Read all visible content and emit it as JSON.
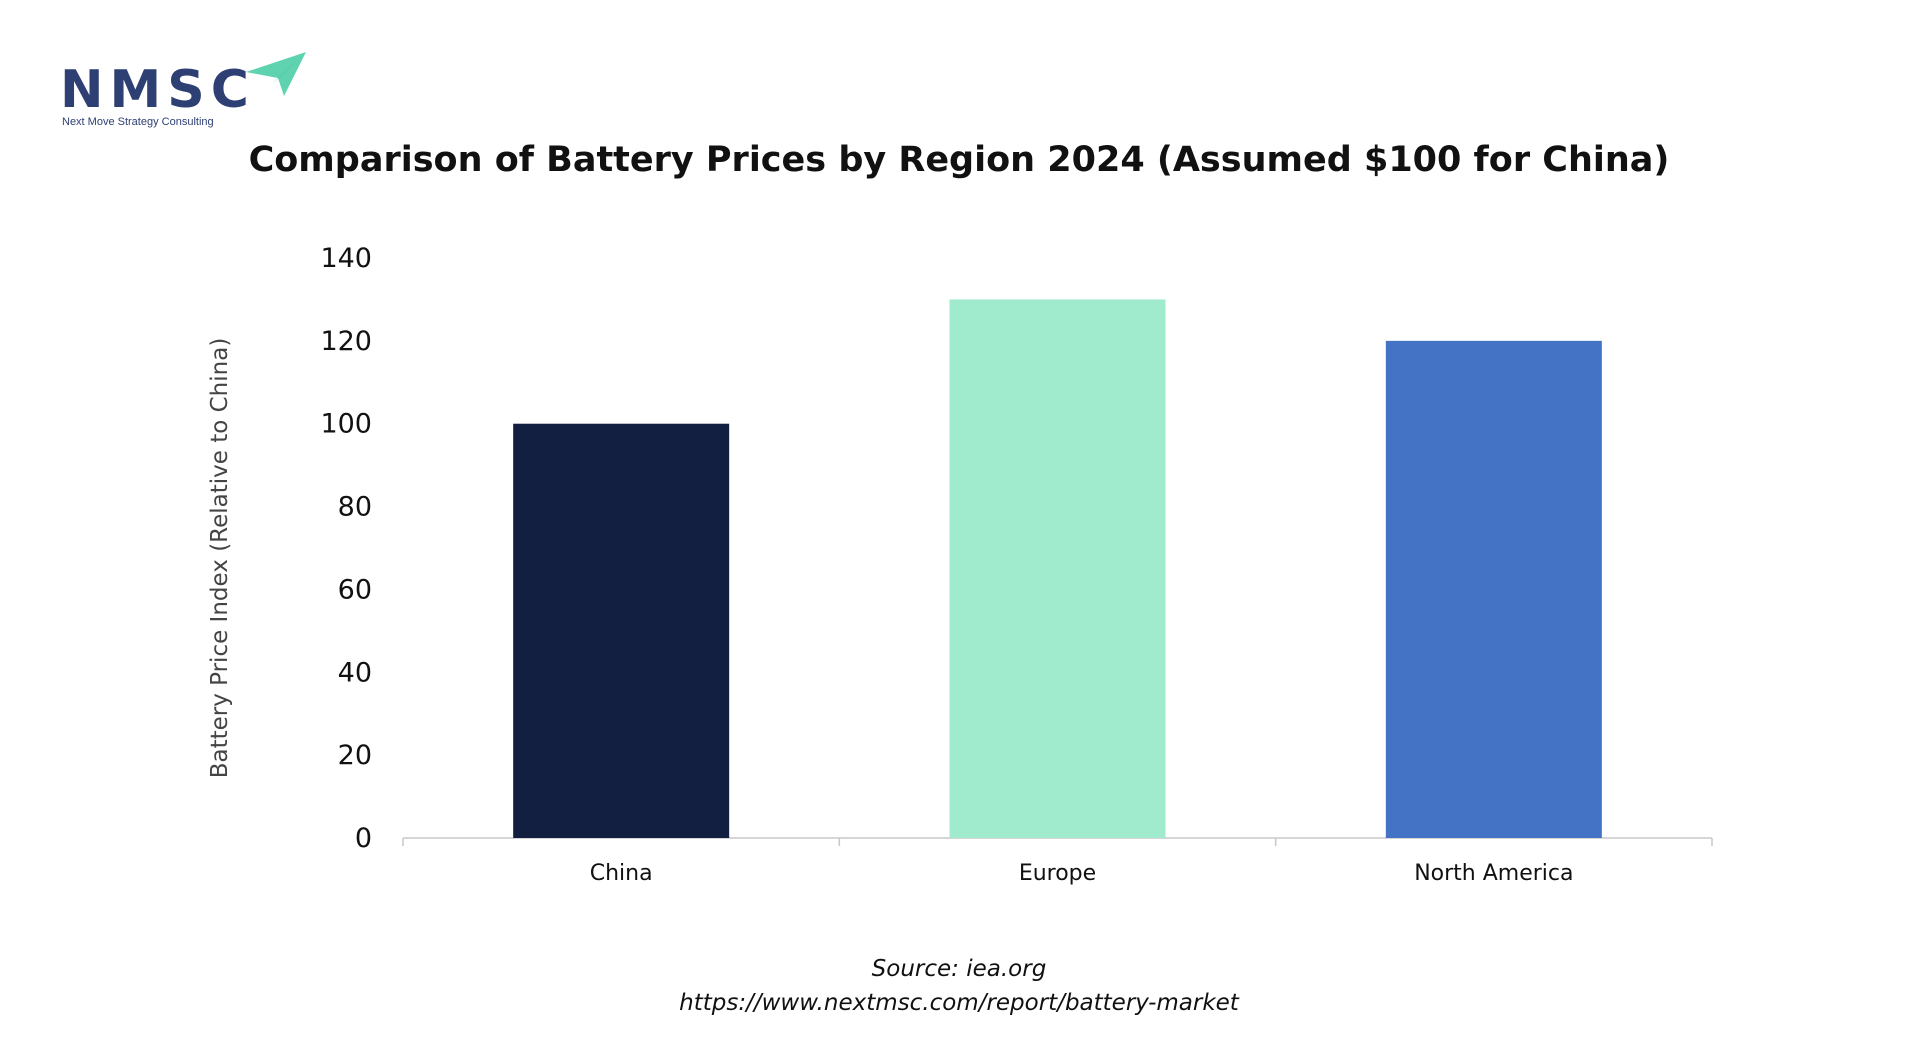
{
  "brand": {
    "name": "NMSC",
    "tagline": "Next Move Strategy Consulting",
    "accent_color": "#5fd3b0",
    "text_color": "#2d3f73"
  },
  "chart_data": {
    "type": "bar",
    "title": "Comparison of Battery Prices by Region 2024 (Assumed $100 for China)",
    "xlabel": "",
    "ylabel": "Battery Price Index (Relative to China)",
    "categories": [
      "China",
      "Europe",
      "North America"
    ],
    "values": [
      100,
      130,
      120
    ],
    "colors": [
      "#131f40",
      "#a0ebce",
      "#4472c4"
    ],
    "ylim": [
      0,
      140
    ],
    "yticks": [
      0,
      20,
      40,
      60,
      80,
      100,
      120,
      140
    ],
    "grid": false,
    "legend": "none"
  },
  "source": {
    "line1": "Source: iea.org",
    "line2": "https://www.nextmsc.com/report/battery-market"
  }
}
